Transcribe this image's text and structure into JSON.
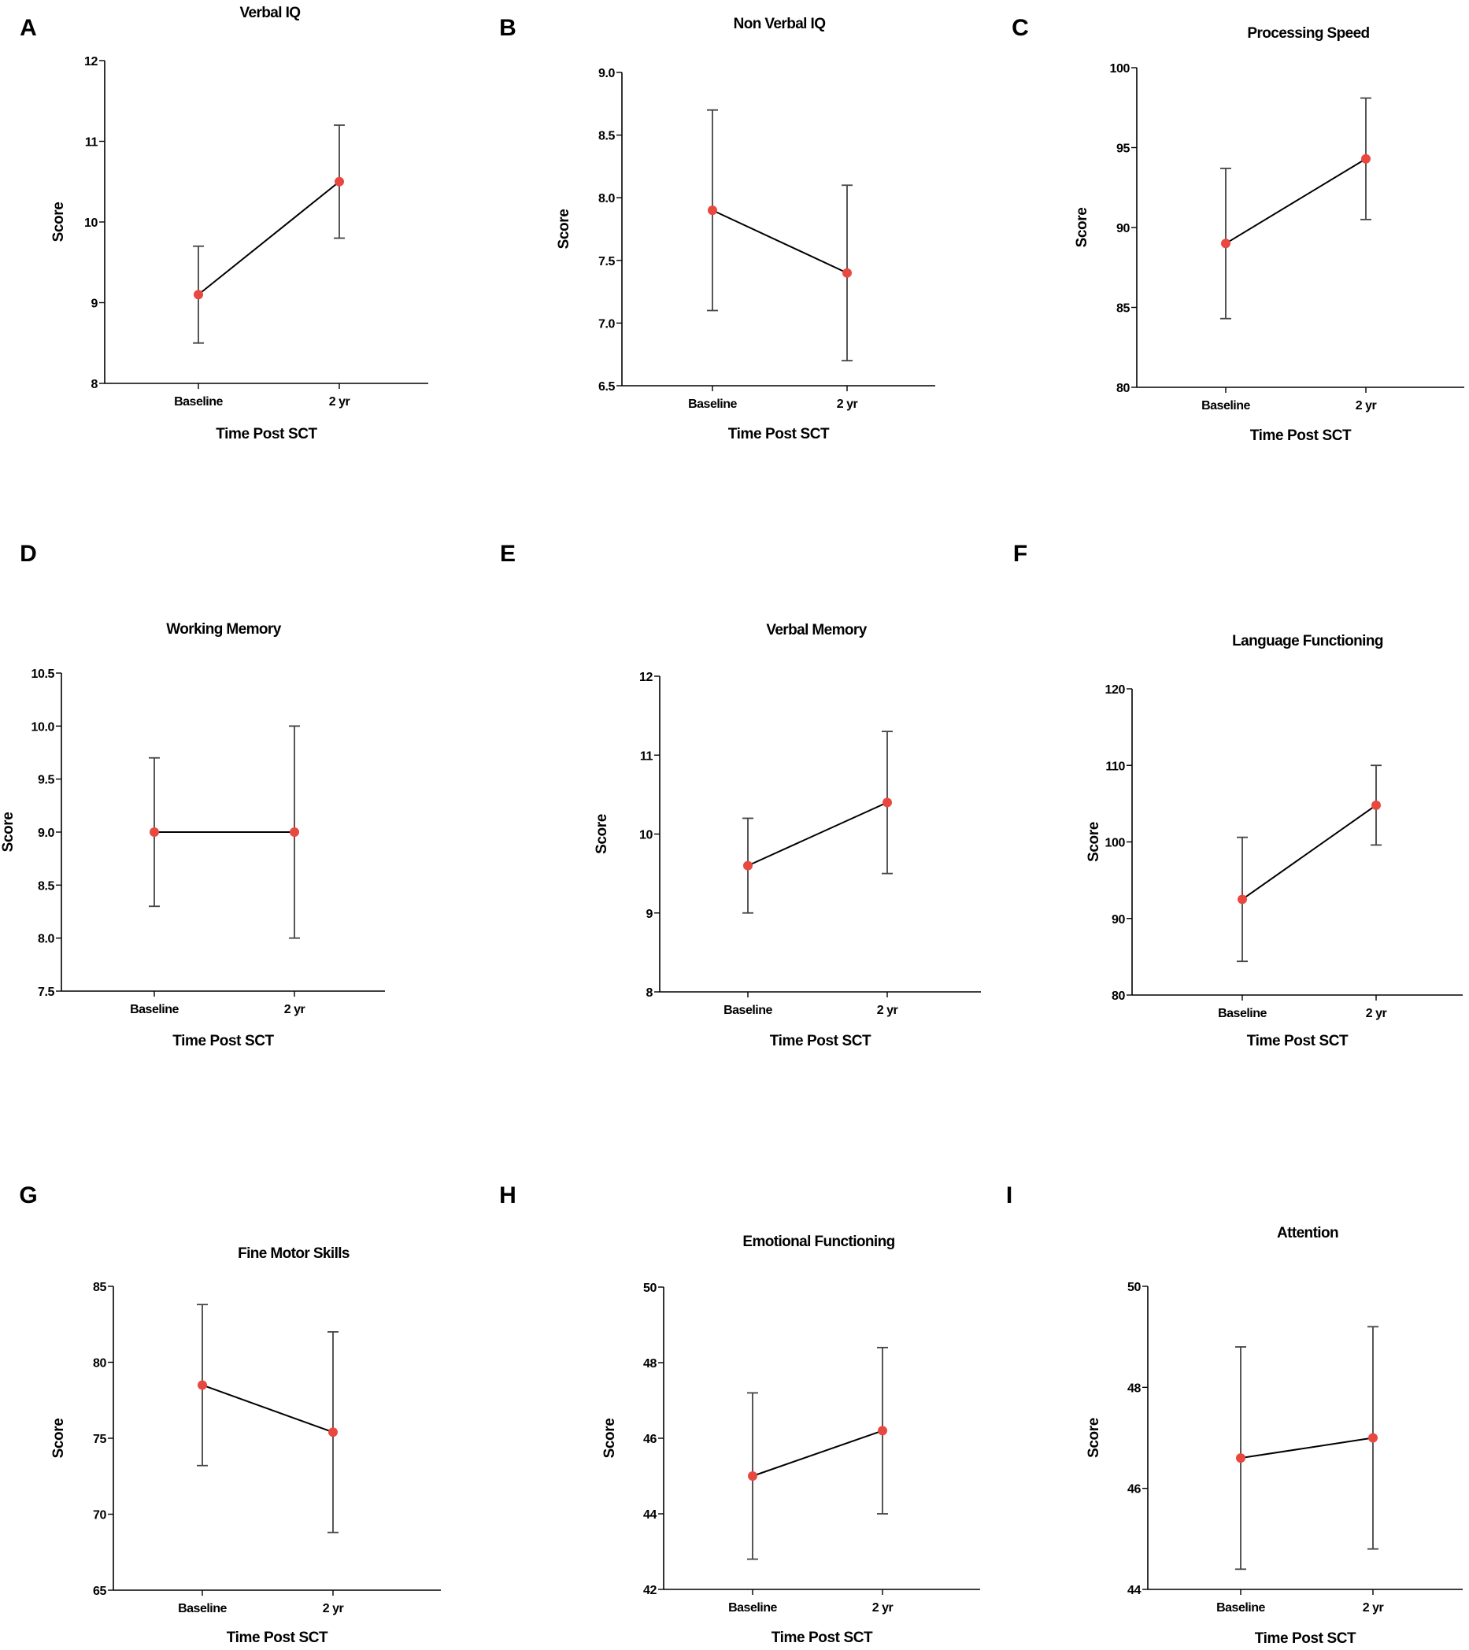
{
  "figure": {
    "panels": [
      "A",
      "B",
      "C",
      "D",
      "E",
      "F",
      "G",
      "H",
      "I"
    ],
    "colors": {
      "marker": "#e8483f",
      "line": "#000000",
      "error_bar": "#444444",
      "axis": "#000000"
    }
  },
  "chart_data": [
    {
      "panel": "A",
      "type": "line",
      "title": "Verbal IQ",
      "xlabel": "Time Post SCT",
      "ylabel": "Score",
      "categories": [
        "Baseline",
        "2 yr"
      ],
      "ylim": [
        8,
        12
      ],
      "yticks": [
        "8",
        "9",
        "10",
        "11",
        "12"
      ],
      "values": [
        9.1,
        10.5
      ],
      "error_low": [
        8.5,
        9.8
      ],
      "error_high": [
        9.7,
        11.2
      ]
    },
    {
      "panel": "B",
      "type": "line",
      "title": "Non Verbal IQ",
      "xlabel": "Time Post SCT",
      "ylabel": "Score",
      "categories": [
        "Baseline",
        "2 yr"
      ],
      "ylim": [
        6.5,
        9.0
      ],
      "yticks": [
        "6.5",
        "7.0",
        "7.5",
        "8.0",
        "8.5",
        "9.0"
      ],
      "values": [
        7.9,
        7.4
      ],
      "error_low": [
        7.1,
        6.7
      ],
      "error_high": [
        8.7,
        8.1
      ]
    },
    {
      "panel": "C",
      "type": "line",
      "title": "Processing Speed",
      "xlabel": "Time Post SCT",
      "ylabel": "Score",
      "categories": [
        "Baseline",
        "2 yr"
      ],
      "ylim": [
        80,
        100
      ],
      "yticks": [
        "80",
        "85",
        "90",
        "95",
        "100"
      ],
      "values": [
        89.0,
        94.3
      ],
      "error_low": [
        84.3,
        90.5
      ],
      "error_high": [
        93.7,
        98.1
      ]
    },
    {
      "panel": "D",
      "type": "line",
      "title": "Working Memory",
      "xlabel": "Time Post SCT",
      "ylabel": "Score",
      "categories": [
        "Baseline",
        "2 yr"
      ],
      "ylim": [
        7.5,
        10.5
      ],
      "yticks": [
        "7.5",
        "8.0",
        "8.5",
        "9.0",
        "9.5",
        "10.0",
        "10.5"
      ],
      "values": [
        9.0,
        9.0
      ],
      "error_low": [
        8.3,
        8.0
      ],
      "error_high": [
        9.7,
        10.0
      ]
    },
    {
      "panel": "E",
      "type": "line",
      "title": "Verbal Memory",
      "xlabel": "Time Post SCT",
      "ylabel": "Score",
      "categories": [
        "Baseline",
        "2 yr"
      ],
      "ylim": [
        8,
        12
      ],
      "yticks": [
        "8",
        "9",
        "10",
        "11",
        "12"
      ],
      "values": [
        9.6,
        10.4
      ],
      "error_low": [
        9.0,
        9.5
      ],
      "error_high": [
        10.2,
        11.3
      ]
    },
    {
      "panel": "F",
      "type": "line",
      "title": "Language Functioning",
      "xlabel": "Time Post SCT",
      "ylabel": "Score",
      "categories": [
        "Baseline",
        "2 yr"
      ],
      "ylim": [
        80,
        120
      ],
      "yticks": [
        "80",
        "90",
        "100",
        "110",
        "120"
      ],
      "values": [
        92.5,
        104.8
      ],
      "error_low": [
        84.4,
        99.6
      ],
      "error_high": [
        100.6,
        110.0
      ]
    },
    {
      "panel": "G",
      "type": "line",
      "title": "Fine Motor Skills",
      "xlabel": "Time Post SCT",
      "ylabel": "Score",
      "categories": [
        "Baseline",
        "2 yr"
      ],
      "ylim": [
        65,
        85
      ],
      "yticks": [
        "65",
        "70",
        "75",
        "80",
        "85"
      ],
      "values": [
        78.5,
        75.4
      ],
      "error_low": [
        73.2,
        68.8
      ],
      "error_high": [
        83.8,
        82.0
      ]
    },
    {
      "panel": "H",
      "type": "line",
      "title": "Emotional Functioning",
      "xlabel": "Time Post SCT",
      "ylabel": "Score",
      "categories": [
        "Baseline",
        "2 yr"
      ],
      "ylim": [
        42,
        50
      ],
      "yticks": [
        "42",
        "44",
        "46",
        "48",
        "50"
      ],
      "values": [
        45.0,
        46.2
      ],
      "error_low": [
        42.8,
        44.0
      ],
      "error_high": [
        47.2,
        48.4
      ]
    },
    {
      "panel": "I",
      "type": "line",
      "title": "Attention",
      "xlabel": "Time Post SCT",
      "ylabel": "Score",
      "categories": [
        "Baseline",
        "2 yr"
      ],
      "ylim": [
        44,
        50
      ],
      "yticks": [
        "44",
        "46",
        "48",
        "50"
      ],
      "values": [
        46.6,
        47.0
      ],
      "error_low": [
        44.4,
        44.8
      ],
      "error_high": [
        48.8,
        49.2
      ]
    }
  ]
}
